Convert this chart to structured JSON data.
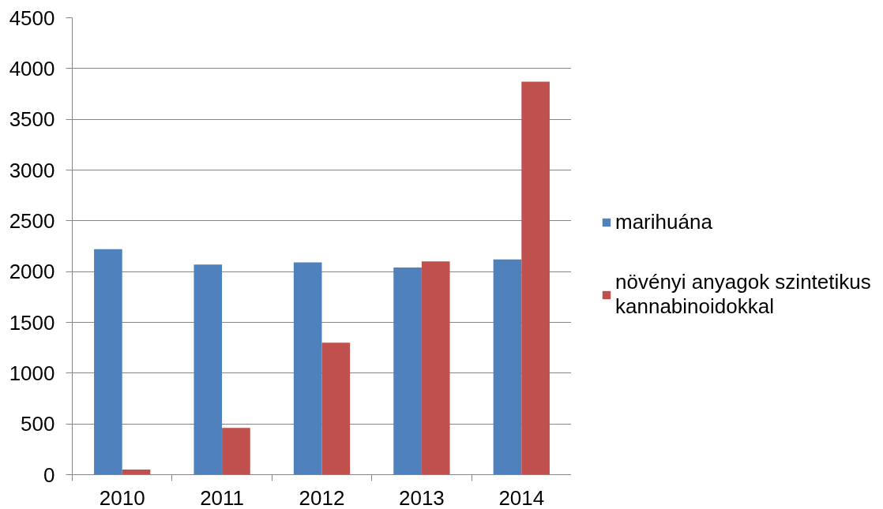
{
  "chart_data": {
    "type": "bar",
    "categories": [
      "2010",
      "2011",
      "2012",
      "2013",
      "2014"
    ],
    "series": [
      {
        "name": "marihuána",
        "color": "#4f81bd",
        "values": [
          2220,
          2070,
          2090,
          2040,
          2120
        ]
      },
      {
        "name": "növényi anyagok szintetikus kannabinoidokkal",
        "color": "#c0504d",
        "values": [
          50,
          460,
          1300,
          2100,
          3870
        ]
      }
    ],
    "ylim": [
      0,
      4500
    ],
    "yticks": [
      0,
      500,
      1000,
      1500,
      2000,
      2500,
      3000,
      3500,
      4000,
      4500
    ],
    "grid": "y",
    "legend": "right"
  }
}
